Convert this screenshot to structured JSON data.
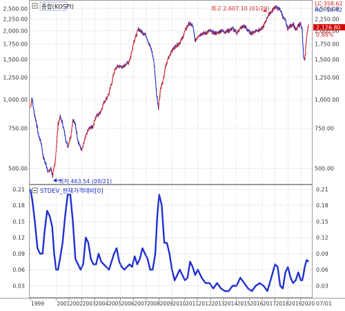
{
  "chart_data": [
    {
      "type": "line",
      "title": "종합(KOSPI)",
      "y_scale": "log",
      "ylim": [
        440,
        2650
      ],
      "grid": true,
      "y_ticks": [
        2500,
        2250,
        2000,
        1750,
        1500,
        1250,
        1000,
        750,
        500
      ],
      "y_tick_labels": [
        "2,500.00",
        "2,250.00",
        "2,000.00",
        "1,750.00",
        "1,500.00",
        "1,250.00",
        "1,000.00",
        "750.00",
        "500.00"
      ],
      "right_y_tick_labels": [
        "2,500.00",
        "2,250.00",
        "2,000.00",
        "1,750.00",
        "1,500.00",
        "1,250.00",
        "1,000.00",
        "750.00",
        "500.00"
      ],
      "series": [
        {
          "x": [
            1999.0,
            1999.12,
            1999.28,
            1999.45,
            1999.62,
            1999.85,
            2000.0,
            2000.2,
            2000.4,
            2000.6,
            2000.72,
            2000.9,
            2001.0,
            2001.15,
            2001.3,
            2001.5,
            2001.72,
            2001.9,
            2002.15,
            2002.3,
            2002.5,
            2002.7,
            2002.85,
            2003.0,
            2003.2,
            2003.4,
            2003.6,
            2003.85,
            2004.0,
            2004.15,
            2004.3,
            2004.5,
            2004.7,
            2004.9,
            2005.1,
            2005.3,
            2005.5,
            2005.7,
            2005.9,
            2006.2,
            2006.4,
            2006.6,
            2006.8,
            2007.0,
            2007.2,
            2007.4,
            2007.6,
            2007.82,
            2008.0,
            2008.2,
            2008.4,
            2008.6,
            2008.8,
            2008.95,
            2009.1,
            2009.3,
            2009.5,
            2009.7,
            2009.9,
            2010.2,
            2010.5,
            2010.8,
            2011.0,
            2011.3,
            2011.6,
            2011.8,
            2012.0,
            2012.3,
            2012.6,
            2012.9,
            2013.2,
            2013.5,
            2013.8,
            2014.1,
            2014.4,
            2014.7,
            2015.0,
            2015.3,
            2015.6,
            2015.9,
            2016.2,
            2016.5,
            2016.8,
            2017.0,
            2017.2,
            2017.4,
            2017.6,
            2017.8,
            2018.0,
            2018.2,
            2018.4,
            2018.6,
            2018.8,
            2018.95,
            2019.2,
            2019.4,
            2019.6,
            2019.8,
            2020.0,
            2020.1,
            2020.2,
            2020.3,
            2020.45,
            2020.6
          ],
          "y": [
            920,
            1020,
            880,
            800,
            700,
            640,
            560,
            520,
            480,
            500,
            464,
            520,
            600,
            780,
            840,
            790,
            680,
            620,
            700,
            820,
            770,
            660,
            620,
            600,
            660,
            720,
            750,
            760,
            820,
            850,
            860,
            900,
            970,
            1010,
            1060,
            1180,
            1320,
            1390,
            1400,
            1380,
            1430,
            1450,
            1550,
            1780,
            1900,
            2040,
            1980,
            1950,
            1900,
            1750,
            1650,
            1450,
            1050,
            920,
            1120,
            1200,
            1400,
            1520,
            1600,
            1700,
            1750,
            1850,
            2000,
            2150,
            2100,
            1800,
            1900,
            1950,
            1950,
            2000,
            1960,
            1950,
            2000,
            1980,
            2000,
            2050,
            1950,
            2050,
            2100,
            2000,
            1950,
            2000,
            2020,
            2050,
            2150,
            2300,
            2400,
            2450,
            2560,
            2500,
            2470,
            2300,
            2200,
            2050,
            2100,
            2150,
            2000,
            2100,
            2150,
            2000,
            1550,
            1470,
            1900,
            2126
          ]
        }
      ],
      "x_tick_labels": [
        "1999",
        "2001",
        "2002",
        "2003",
        "2004",
        "2005",
        "2006",
        "2007",
        "2008",
        "2009",
        "2010",
        "2011",
        "2012",
        "2013",
        "2014",
        "2015",
        "2016",
        "2017",
        "2018",
        "2019",
        "2020"
      ],
      "annotations": {
        "max": "최고 2,607.10 (01/29)",
        "min": "최저 463.54 (09/21)"
      },
      "info_box": [
        "LC:358.62",
        "HC:-18.42",
        "2,126.80",
        "0.88%"
      ],
      "current_value_label": "2,126.80"
    },
    {
      "type": "line",
      "title": "STDEV_현재가격대비[0]",
      "ylim": [
        0.01,
        0.215
      ],
      "grid": true,
      "y_ticks": [
        0.21,
        0.18,
        0.15,
        0.12,
        0.09,
        0.06,
        0.03
      ],
      "y_tick_labels": [
        "0.21",
        "0.18",
        "0.15",
        "0.12",
        "0.09",
        "0.06",
        "0.03"
      ],
      "series": [
        {
          "color": "#1f2fd0",
          "x": [
            1999.0,
            1999.15,
            1999.35,
            1999.55,
            1999.75,
            1999.95,
            2000.1,
            2000.3,
            2000.5,
            2000.7,
            2000.85,
            2001.0,
            2001.15,
            2001.3,
            2001.5,
            2001.7,
            2001.9,
            2002.1,
            2002.3,
            2002.5,
            2002.7,
            2002.9,
            2003.1,
            2003.3,
            2003.5,
            2003.7,
            2003.9,
            2004.1,
            2004.3,
            2004.5,
            2004.7,
            2004.9,
            2005.1,
            2005.3,
            2005.5,
            2005.7,
            2005.9,
            2006.1,
            2006.3,
            2006.5,
            2006.7,
            2006.9,
            2007.1,
            2007.3,
            2007.5,
            2007.7,
            2007.9,
            2008.1,
            2008.3,
            2008.5,
            2008.7,
            2008.85,
            2009.0,
            2009.2,
            2009.4,
            2009.6,
            2009.8,
            2010.0,
            2010.2,
            2010.4,
            2010.6,
            2010.8,
            2011.0,
            2011.2,
            2011.4,
            2011.6,
            2011.8,
            2012.0,
            2012.3,
            2012.6,
            2012.9,
            2013.2,
            2013.5,
            2013.8,
            2014.1,
            2014.4,
            2014.7,
            2015.0,
            2015.3,
            2015.6,
            2015.9,
            2016.2,
            2016.5,
            2016.8,
            2017.1,
            2017.4,
            2017.7,
            2018.0,
            2018.2,
            2018.4,
            2018.6,
            2018.8,
            2019.0,
            2019.2,
            2019.4,
            2019.6,
            2019.8,
            2020.0,
            2020.1,
            2020.2,
            2020.3,
            2020.45,
            2020.6
          ],
          "y": [
            0.21,
            0.19,
            0.15,
            0.1,
            0.09,
            0.09,
            0.13,
            0.17,
            0.16,
            0.14,
            0.09,
            0.06,
            0.06,
            0.08,
            0.11,
            0.16,
            0.2,
            0.2,
            0.15,
            0.08,
            0.07,
            0.06,
            0.07,
            0.12,
            0.11,
            0.08,
            0.07,
            0.07,
            0.09,
            0.075,
            0.07,
            0.065,
            0.06,
            0.075,
            0.09,
            0.1,
            0.075,
            0.065,
            0.06,
            0.065,
            0.07,
            0.065,
            0.085,
            0.07,
            0.08,
            0.1,
            0.09,
            0.08,
            0.06,
            0.06,
            0.09,
            0.16,
            0.2,
            0.18,
            0.11,
            0.11,
            0.09,
            0.06,
            0.04,
            0.05,
            0.06,
            0.05,
            0.04,
            0.045,
            0.075,
            0.065,
            0.05,
            0.06,
            0.045,
            0.035,
            0.035,
            0.025,
            0.035,
            0.025,
            0.02,
            0.02,
            0.03,
            0.03,
            0.045,
            0.035,
            0.025,
            0.02,
            0.03,
            0.035,
            0.03,
            0.02,
            0.045,
            0.07,
            0.065,
            0.03,
            0.025,
            0.055,
            0.065,
            0.045,
            0.035,
            0.04,
            0.055,
            0.04,
            0.04,
            0.05,
            0.065,
            0.078,
            0.075
          ]
        }
      ],
      "x_tick_labels": [
        "1999",
        "2001",
        "2002",
        "2003",
        "2004",
        "2005",
        "2006",
        "2007",
        "2008",
        "2009",
        "2010",
        "2011",
        "2012",
        "2013",
        "2014",
        "2015",
        "2016",
        "2017",
        "2018",
        "2019",
        "2020"
      ],
      "right_label": "07/01"
    }
  ],
  "colors": {
    "up": "#d42020",
    "down": "#2030c8",
    "stdev": "#1f2fd0",
    "grid": "#c0c0c0",
    "current_box": "#d40000"
  }
}
